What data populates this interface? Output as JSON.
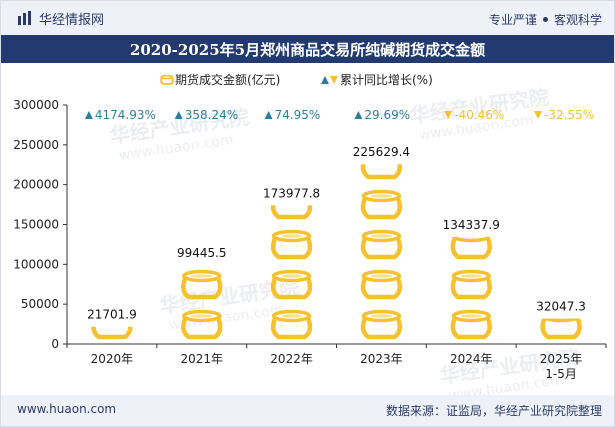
{
  "header": {
    "logo_text": "华经情报网",
    "tagline_left": "专业严谨",
    "tagline_right": "客观科学"
  },
  "title": "2020-2025年5月郑州商品交易所纯碱期货成交金额",
  "footer": {
    "website": "www.huaon.com",
    "source": "数据来源：证监局，华经产业研究院整理"
  },
  "watermark": {
    "name": "华经产业研究院",
    "url": "www.huaon.com"
  },
  "colors": {
    "bar": "#f5c130",
    "bar_light": "#fbe08a",
    "up": "#2e7d9a",
    "down": "#f5c130",
    "title_bg": "#233a70"
  },
  "chart_data": {
    "type": "bar",
    "categories": [
      "2020年",
      "2021年",
      "2022年",
      "2023年",
      "2024年",
      "2025年\n1-5月"
    ],
    "series": [
      {
        "name": "期货成交金额(亿元)",
        "values": [
          21701.9,
          99445.5,
          173977.8,
          225629.4,
          134337.9,
          32047.3
        ],
        "labels": [
          "21701.9",
          "99445.5",
          "173977.8",
          "225629.4",
          "134337.9",
          "32047.3"
        ]
      },
      {
        "name": "累计同比增长(%)",
        "values": [
          4174.93,
          358.24,
          74.95,
          29.69,
          -40.46,
          -32.55
        ],
        "labels": [
          "4174.93%",
          "358.24%",
          "74.95%",
          "29.69%",
          "-40.46%",
          "-32.55%"
        ]
      }
    ],
    "yticks": [
      "0",
      "50000",
      "100000",
      "150000",
      "200000",
      "250000",
      "300000"
    ],
    "ylim": [
      0,
      300000
    ],
    "bar_style": "pictograph (stacked money pots)",
    "legend_position": "top-center",
    "grid": false
  }
}
